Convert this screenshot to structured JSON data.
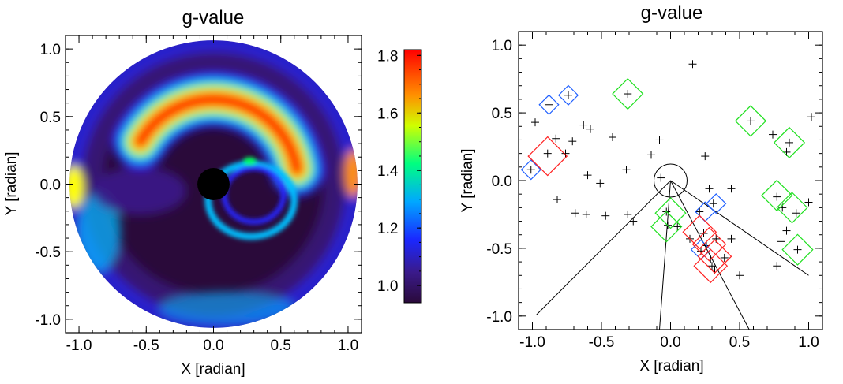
{
  "chart_data": [
    {
      "type": "heatmap",
      "title": "g-value",
      "xlabel": "X [radian]",
      "ylabel": "Y [radian]",
      "xlim": [
        -1.1,
        1.1
      ],
      "ylim": [
        -1.1,
        1.1
      ],
      "xticks": [
        -1.0,
        -0.5,
        0.0,
        0.5,
        1.0
      ],
      "yticks": [
        -1.0,
        -0.5,
        0.0,
        0.5,
        1.0
      ],
      "xtick_labels": [
        "-1.0",
        "-0.5",
        "0.0",
        "0.5",
        "1.0"
      ],
      "ytick_labels": [
        "-1.0",
        "-0.5",
        "0.0",
        "0.5",
        "1.0"
      ],
      "disk_radius": 1.07,
      "occulter": {
        "x": 0.0,
        "y": 0.0,
        "r": 0.12
      },
      "colorbar": {
        "range": [
          0.94,
          1.82
        ],
        "ticks": [
          1.0,
          1.2,
          1.4,
          1.6,
          1.8
        ],
        "tick_labels": [
          "1.0",
          "1.2",
          "1.4",
          "1.6",
          "1.8"
        ]
      },
      "colors": {
        "background": "#2a0a3a",
        "c1": "#3a1a8a",
        "c2": "#2828ff",
        "c3": "#00c0ff",
        "c4": "#00ff60",
        "c5": "#ffff00",
        "c6": "#ff9000",
        "c7": "#ff2000"
      }
    },
    {
      "type": "scatter",
      "title": "g-value",
      "xlabel": "X [radian]",
      "ylabel": "Y [radian]",
      "xlim": [
        -1.1,
        1.1
      ],
      "ylim": [
        -1.1,
        1.1
      ],
      "xticks": [
        -1.0,
        -0.5,
        0.0,
        0.5,
        1.0
      ],
      "yticks": [
        -1.0,
        -0.5,
        0.0,
        0.5,
        1.0
      ],
      "xtick_labels": [
        "-1.0",
        "-0.5",
        "0.0",
        "0.5",
        "1.0"
      ],
      "ytick_labels": [
        "-1.0",
        "-0.5",
        "0.0",
        "0.5",
        "1.0"
      ],
      "circle": {
        "x": 0.0,
        "y": 0.0,
        "r": 0.12
      },
      "lines": [
        [
          [
            0.0,
            0.0
          ],
          [
            -0.97,
            -0.99
          ]
        ],
        [
          [
            0.0,
            0.0
          ],
          [
            -0.08,
            -1.1
          ]
        ],
        [
          [
            0.0,
            0.0
          ],
          [
            0.57,
            -1.1
          ]
        ],
        [
          [
            0.0,
            0.0
          ],
          [
            1.0,
            -0.7
          ]
        ]
      ],
      "points": [
        [
          0.16,
          0.86
        ],
        [
          -0.74,
          0.63
        ],
        [
          -0.31,
          0.64
        ],
        [
          -0.88,
          0.56
        ],
        [
          -0.98,
          0.43
        ],
        [
          -0.63,
          0.41
        ],
        [
          -0.58,
          0.38
        ],
        [
          -0.42,
          0.32
        ],
        [
          -0.08,
          0.3
        ],
        [
          0.58,
          0.44
        ],
        [
          0.74,
          0.34
        ],
        [
          0.86,
          0.28
        ],
        [
          1.02,
          0.47
        ],
        [
          -0.83,
          0.31
        ],
        [
          -0.71,
          0.29
        ],
        [
          -0.76,
          0.2
        ],
        [
          -0.89,
          0.2
        ],
        [
          -1.01,
          0.08
        ],
        [
          -0.14,
          0.19
        ],
        [
          0.25,
          0.18
        ],
        [
          0.84,
          0.21
        ],
        [
          -0.6,
          0.04
        ],
        [
          -0.51,
          -0.02
        ],
        [
          -0.32,
          0.08
        ],
        [
          -0.07,
          0.02
        ],
        [
          0.28,
          -0.06
        ],
        [
          0.44,
          -0.06
        ],
        [
          -0.82,
          -0.14
        ],
        [
          -0.69,
          -0.24
        ],
        [
          -0.61,
          -0.25
        ],
        [
          -0.47,
          -0.26
        ],
        [
          -0.31,
          -0.25
        ],
        [
          -0.27,
          -0.3
        ],
        [
          0.77,
          -0.12
        ],
        [
          0.81,
          -0.2
        ],
        [
          0.91,
          -0.24
        ],
        [
          1.0,
          -0.16
        ],
        [
          0.21,
          -0.23
        ],
        [
          0.31,
          -0.17
        ],
        [
          -0.03,
          -0.23
        ],
        [
          -0.02,
          -0.33
        ],
        [
          0.33,
          -0.43
        ],
        [
          0.44,
          -0.43
        ],
        [
          0.84,
          -0.37
        ],
        [
          0.8,
          -0.45
        ],
        [
          0.92,
          -0.51
        ],
        [
          0.14,
          -0.43
        ],
        [
          0.24,
          -0.39
        ],
        [
          0.26,
          -0.48
        ],
        [
          0.29,
          -0.58
        ],
        [
          0.3,
          -0.63
        ],
        [
          0.32,
          -0.66
        ],
        [
          0.39,
          -0.57
        ],
        [
          0.5,
          -0.7
        ],
        [
          0.77,
          -0.63
        ],
        [
          0.22,
          -0.52
        ],
        [
          0.05,
          -0.34
        ]
      ],
      "diamonds": [
        {
          "x": -0.74,
          "y": 0.63,
          "size": 0.07,
          "color": "blue"
        },
        {
          "x": -0.88,
          "y": 0.56,
          "size": 0.07,
          "color": "blue"
        },
        {
          "x": -1.01,
          "y": 0.08,
          "size": 0.07,
          "color": "blue"
        },
        {
          "x": 0.25,
          "y": -0.23,
          "size": 0.07,
          "color": "blue"
        },
        {
          "x": 0.33,
          "y": -0.17,
          "size": 0.07,
          "color": "blue"
        },
        {
          "x": 0.22,
          "y": -0.51,
          "size": 0.07,
          "color": "blue"
        },
        {
          "x": -0.31,
          "y": 0.64,
          "size": 0.11,
          "color": "green"
        },
        {
          "x": 0.58,
          "y": 0.44,
          "size": 0.11,
          "color": "green"
        },
        {
          "x": 0.86,
          "y": 0.28,
          "size": 0.11,
          "color": "green"
        },
        {
          "x": 0.77,
          "y": -0.11,
          "size": 0.11,
          "color": "green"
        },
        {
          "x": 0.88,
          "y": -0.2,
          "size": 0.11,
          "color": "green"
        },
        {
          "x": 0.92,
          "y": -0.51,
          "size": 0.11,
          "color": "green"
        },
        {
          "x": 0.0,
          "y": -0.24,
          "size": 0.11,
          "color": "green"
        },
        {
          "x": -0.03,
          "y": -0.34,
          "size": 0.11,
          "color": "green"
        },
        {
          "x": -0.89,
          "y": 0.18,
          "size": 0.14,
          "color": "red"
        },
        {
          "x": 0.21,
          "y": -0.38,
          "size": 0.12,
          "color": "red"
        },
        {
          "x": 0.28,
          "y": -0.47,
          "size": 0.12,
          "color": "red"
        },
        {
          "x": 0.32,
          "y": -0.56,
          "size": 0.12,
          "color": "red"
        },
        {
          "x": 0.29,
          "y": -0.63,
          "size": 0.12,
          "color": "red"
        }
      ],
      "colors": {
        "marker": "#000000",
        "blue": "#2060ff",
        "green": "#20e020",
        "red": "#ff2020"
      }
    }
  ]
}
